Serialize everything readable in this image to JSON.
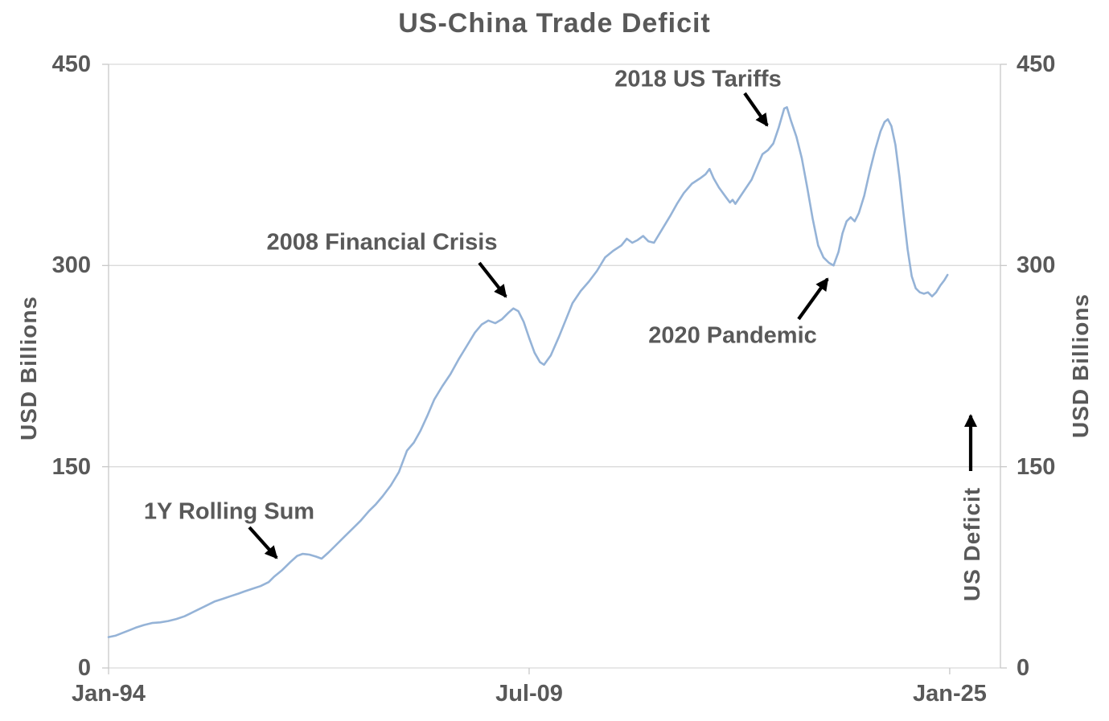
{
  "title": "US-China Trade Deficit",
  "axes": {
    "y_left": {
      "label": "USD Billions",
      "ticks": [
        "450",
        "300",
        "150",
        "0"
      ]
    },
    "y_right": {
      "label": "USD Billions",
      "ticks": [
        "450",
        "300",
        "150",
        "0"
      ]
    },
    "x": {
      "ticks": [
        "Jan-94",
        "Jul-09",
        "Jan-25"
      ]
    }
  },
  "annotations": {
    "rolling_sum": "1Y Rolling Sum",
    "financial_crisis": "2008 Financial Crisis",
    "tariffs": "2018 US Tariffs",
    "pandemic": "2020 Pandemic",
    "us_deficit": "US Deficit"
  },
  "colors": {
    "line": "#95B3D7",
    "text": "#595959",
    "grid": "#DADADA",
    "axis": "#C8C8C8",
    "arrow": "#000000"
  },
  "chart_data": {
    "type": "line",
    "title": "US-China Trade Deficit",
    "ylabel": "USD Billions",
    "series_name": "1Y Rolling Sum",
    "x_unit": "decimal_year",
    "x_range": [
      1994.0,
      2026.87
    ],
    "ylim": [
      0,
      450
    ],
    "y_tick_values": [
      0,
      150,
      300,
      450
    ],
    "x_tick_labels": [
      "Jan-94",
      "Jul-09",
      "Jan-25"
    ],
    "x_tick_positions": [
      1994.0,
      2009.5,
      2025.0
    ],
    "grid": "horizontal",
    "legend": "none",
    "event_markers": [
      {
        "label": "1Y Rolling Sum",
        "x": 2000.3,
        "y": 80
      },
      {
        "label": "2008 Financial Crisis",
        "x": 2008.8,
        "y": 268
      },
      {
        "label": "2018 US Tariffs",
        "x": 2018.9,
        "y": 418
      },
      {
        "label": "2020 Pandemic",
        "x": 2020.7,
        "y": 300
      }
    ],
    "points": [
      [
        1994.0,
        23
      ],
      [
        1994.25,
        24
      ],
      [
        1994.5,
        26
      ],
      [
        1994.75,
        28
      ],
      [
        1995.0,
        30
      ],
      [
        1995.3,
        32
      ],
      [
        1995.6,
        33.5
      ],
      [
        1995.9,
        34
      ],
      [
        1996.2,
        35
      ],
      [
        1996.5,
        36.5
      ],
      [
        1996.8,
        38.5
      ],
      [
        1997.0,
        40.5
      ],
      [
        1997.3,
        43.5
      ],
      [
        1997.6,
        46.5
      ],
      [
        1997.9,
        49.5
      ],
      [
        1998.2,
        51.5
      ],
      [
        1998.5,
        53.5
      ],
      [
        1998.8,
        55.5
      ],
      [
        1999.0,
        57
      ],
      [
        1999.3,
        59
      ],
      [
        1999.6,
        61
      ],
      [
        1999.9,
        64
      ],
      [
        2000.1,
        68
      ],
      [
        2000.4,
        73
      ],
      [
        2000.7,
        79
      ],
      [
        2000.95,
        83.5
      ],
      [
        2001.15,
        85
      ],
      [
        2001.4,
        84.5
      ],
      [
        2001.65,
        83
      ],
      [
        2001.85,
        81.5
      ],
      [
        2002.1,
        86
      ],
      [
        2002.4,
        92
      ],
      [
        2002.7,
        98
      ],
      [
        2003.0,
        104
      ],
      [
        2003.3,
        110
      ],
      [
        2003.6,
        117
      ],
      [
        2003.85,
        122
      ],
      [
        2004.1,
        128
      ],
      [
        2004.4,
        136
      ],
      [
        2004.7,
        146
      ],
      [
        2005.0,
        162
      ],
      [
        2005.25,
        168
      ],
      [
        2005.5,
        177
      ],
      [
        2005.75,
        188
      ],
      [
        2006.0,
        200
      ],
      [
        2006.3,
        210
      ],
      [
        2006.6,
        219
      ],
      [
        2006.9,
        230
      ],
      [
        2007.2,
        240
      ],
      [
        2007.5,
        250
      ],
      [
        2007.75,
        256
      ],
      [
        2008.0,
        259
      ],
      [
        2008.25,
        257
      ],
      [
        2008.5,
        260
      ],
      [
        2008.75,
        265
      ],
      [
        2008.92,
        268
      ],
      [
        2009.1,
        266
      ],
      [
        2009.3,
        258
      ],
      [
        2009.5,
        246
      ],
      [
        2009.7,
        235
      ],
      [
        2009.9,
        228
      ],
      [
        2010.05,
        226
      ],
      [
        2010.3,
        233
      ],
      [
        2010.6,
        247
      ],
      [
        2010.9,
        262
      ],
      [
        2011.1,
        272
      ],
      [
        2011.4,
        281
      ],
      [
        2011.7,
        288
      ],
      [
        2012.0,
        296
      ],
      [
        2012.3,
        306
      ],
      [
        2012.6,
        311
      ],
      [
        2012.9,
        315
      ],
      [
        2013.1,
        320
      ],
      [
        2013.3,
        317
      ],
      [
        2013.5,
        319
      ],
      [
        2013.7,
        322
      ],
      [
        2013.9,
        318
      ],
      [
        2014.1,
        317
      ],
      [
        2014.4,
        327
      ],
      [
        2014.7,
        337
      ],
      [
        2014.95,
        346
      ],
      [
        2015.2,
        354
      ],
      [
        2015.5,
        361
      ],
      [
        2015.8,
        365
      ],
      [
        2016.0,
        368
      ],
      [
        2016.15,
        372
      ],
      [
        2016.3,
        365
      ],
      [
        2016.5,
        358
      ],
      [
        2016.75,
        351
      ],
      [
        2016.9,
        347
      ],
      [
        2017.0,
        349
      ],
      [
        2017.1,
        346
      ],
      [
        2017.4,
        355
      ],
      [
        2017.7,
        364
      ],
      [
        2017.95,
        376
      ],
      [
        2018.1,
        383
      ],
      [
        2018.3,
        386
      ],
      [
        2018.5,
        391
      ],
      [
        2018.7,
        403
      ],
      [
        2018.9,
        417
      ],
      [
        2019.0,
        418
      ],
      [
        2019.15,
        408
      ],
      [
        2019.35,
        396
      ],
      [
        2019.55,
        380
      ],
      [
        2019.75,
        358
      ],
      [
        2019.95,
        335
      ],
      [
        2020.15,
        315
      ],
      [
        2020.35,
        306
      ],
      [
        2020.55,
        302
      ],
      [
        2020.72,
        300
      ],
      [
        2020.9,
        310
      ],
      [
        2021.05,
        324
      ],
      [
        2021.2,
        333
      ],
      [
        2021.35,
        336
      ],
      [
        2021.5,
        333
      ],
      [
        2021.65,
        339
      ],
      [
        2021.85,
        352
      ],
      [
        2022.05,
        370
      ],
      [
        2022.25,
        386
      ],
      [
        2022.45,
        400
      ],
      [
        2022.6,
        407
      ],
      [
        2022.72,
        409
      ],
      [
        2022.85,
        404
      ],
      [
        2023.0,
        390
      ],
      [
        2023.15,
        366
      ],
      [
        2023.3,
        338
      ],
      [
        2023.45,
        312
      ],
      [
        2023.6,
        292
      ],
      [
        2023.75,
        283
      ],
      [
        2023.9,
        280
      ],
      [
        2024.05,
        279
      ],
      [
        2024.2,
        280
      ],
      [
        2024.35,
        277
      ],
      [
        2024.5,
        280
      ],
      [
        2024.65,
        285
      ],
      [
        2024.8,
        289
      ],
      [
        2024.92,
        293
      ]
    ]
  }
}
